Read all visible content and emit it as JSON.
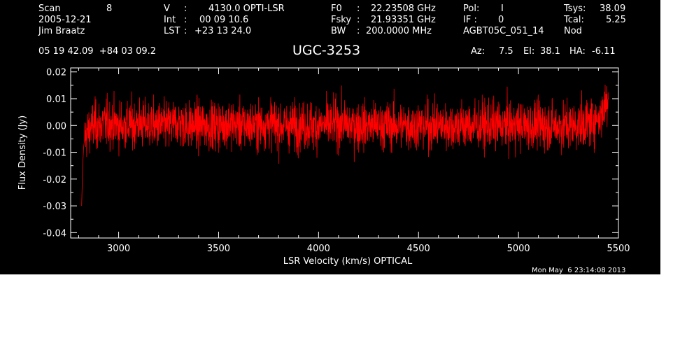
{
  "header": {
    "scan_label": "Scan",
    "scan_value": "8",
    "date": "2005-12-21",
    "observer": "Jim Braatz",
    "v_label": "V",
    "v_value": "4130.0 OPTI-LSR",
    "int_label": "Int",
    "int_value": "00 09 10.6",
    "lst_label": "LST",
    "lst_value": "+23 13 24.0",
    "f0_label": "F0",
    "f0_value": "22.23508 GHz",
    "fsky_label": "Fsky",
    "fsky_value": "21.93351 GHz",
    "bw_label": "BW",
    "bw_value": "200.0000 MHz",
    "pol_label": "Pol:",
    "pol_value": "I",
    "if_label": "IF :",
    "if_value": "0",
    "project": "AGBT05C_051_14",
    "tsys_label": "Tsys:",
    "tsys_value": "38.09",
    "tcal_label": "Tcal:",
    "tcal_value": "5.25",
    "nod": "Nod",
    "coords": "05 19 42.09  +84 03 09.2",
    "source": "UGC-3253",
    "az_label": "Az:",
    "az_value": "7.5",
    "el_label": "El:",
    "el_value": "38.1",
    "ha_label": "HA:",
    "ha_value": "-6.11"
  },
  "timestamp": "Mon May  6 23:14:08 2013",
  "chart_data": {
    "type": "line",
    "title": "UGC-3253",
    "xlabel": "LSR Velocity (km/s) OPTICAL",
    "ylabel": "Flux Density (Jy)",
    "xlim": [
      2760,
      5500
    ],
    "ylim": [
      -0.042,
      0.0215
    ],
    "x_ticks": [
      3000,
      3500,
      4000,
      4500,
      5000,
      5500
    ],
    "y_ticks": [
      -0.04,
      -0.03,
      -0.02,
      -0.01,
      0.0,
      0.01,
      0.02
    ],
    "y_tick_labels": [
      "-0.04",
      "-0.03",
      "-0.02",
      "-0.01",
      "0.00",
      "0.01",
      "0.02"
    ],
    "grid": false,
    "series_color": "#ff0000",
    "series": [
      {
        "x": [
          2815,
          2820,
          2825,
          2830,
          2835,
          2840,
          2850,
          2860,
          2870,
          2880,
          2900,
          2950,
          3000,
          3050,
          3100,
          3150,
          3200,
          3250,
          3300,
          3350,
          3400,
          3450,
          3500,
          3550,
          3600,
          3650,
          3700,
          3750,
          3800,
          3850,
          3900,
          3950,
          4000,
          4050,
          4100,
          4150,
          4200,
          4250,
          4300,
          4350,
          4400,
          4450,
          4500,
          4550,
          4600,
          4650,
          4700,
          4750,
          4800,
          4850,
          4900,
          4950,
          5000,
          5050,
          5100,
          5150,
          5200,
          5250,
          5300,
          5350,
          5400,
          5420,
          5440,
          5450
        ],
        "y": [
          -0.03,
          -0.015,
          -0.008,
          -0.005,
          -0.004,
          -0.003,
          -0.002,
          -0.001,
          0.0,
          0.0,
          0.0,
          0.001,
          0.0,
          0.0,
          0.001,
          0.0,
          0.0,
          0.0,
          0.001,
          0.0,
          0.0,
          0.0,
          0.0,
          0.001,
          0.0,
          0.0,
          0.0,
          0.001,
          0.0,
          0.0,
          0.0,
          0.0,
          0.0,
          0.0,
          0.001,
          0.0,
          0.0,
          0.0,
          0.0,
          0.0,
          0.0,
          0.0,
          0.0,
          0.0,
          0.0,
          0.0,
          0.0,
          0.0,
          0.0,
          0.0,
          0.0,
          0.0,
          0.0,
          0.0,
          0.0,
          0.0,
          0.0,
          0.0,
          0.0,
          0.001,
          0.003,
          0.005,
          0.009,
          0.012
        ],
        "noise_rms": 0.0045
      }
    ]
  }
}
